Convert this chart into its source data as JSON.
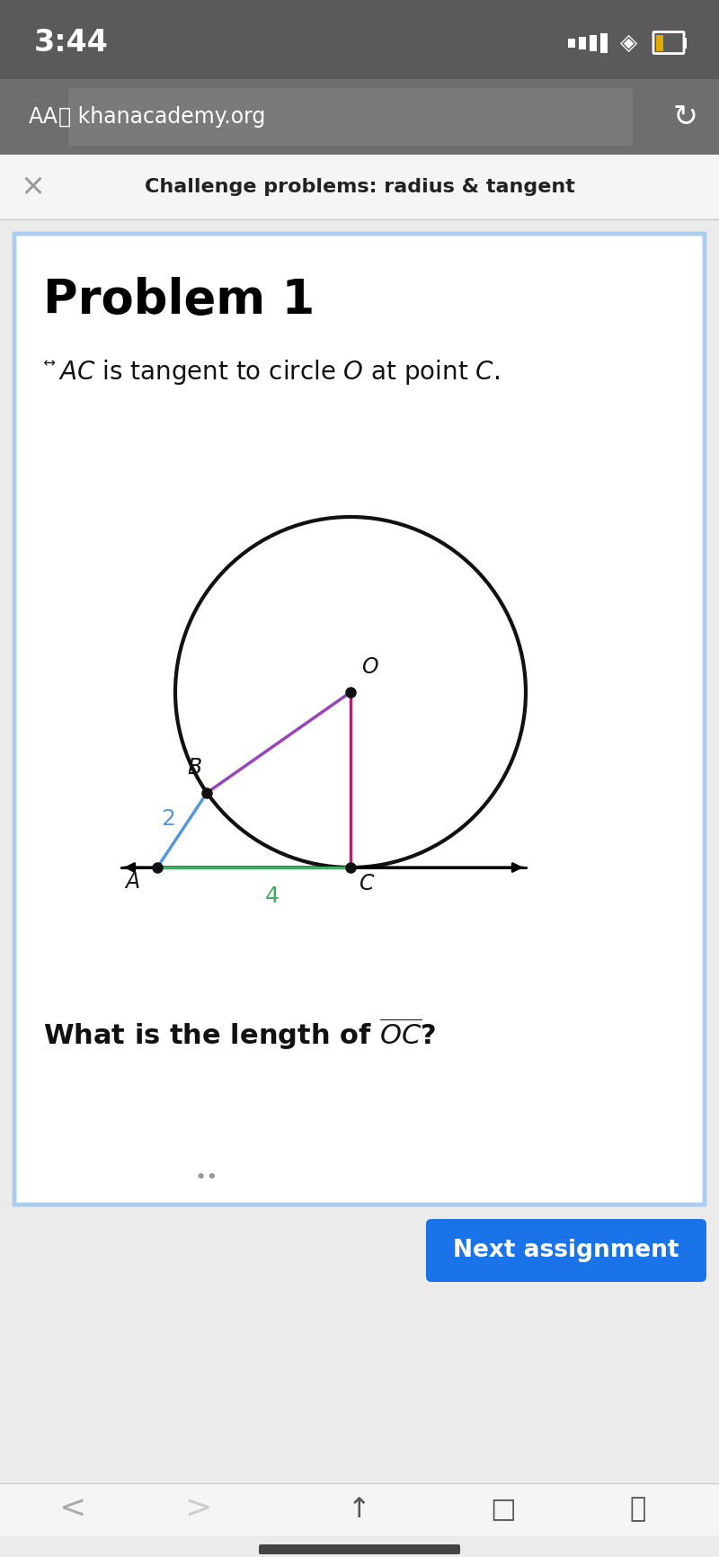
{
  "status_bar_text": "3:44",
  "browser_url": "khanacademy.org",
  "header_text": "Challenge problems: radius & tangent",
  "problem_title": "Problem 1",
  "label_AB": "2",
  "label_AC": "4",
  "label_A": "A",
  "label_B": "B",
  "label_C": "C",
  "label_O": "O",
  "next_button_text": "Next assignment",
  "colors": {
    "status_bar_bg": "#5a5a5a",
    "browser_bar_bg": "#6e6e6e",
    "browser_url_bar_bg": "#888888",
    "page_bg": "#ebebeb",
    "card_bg": "#ffffff",
    "card_border": "#aaccee",
    "circle_color": "#111111",
    "seg_AB_color": "#5599dd",
    "seg_AC_color": "#44aa66",
    "seg_OB_color": "#9944bb",
    "seg_OC_color": "#cc1177",
    "point_color": "#111111",
    "label_color_AB": "#5599dd",
    "label_color_AC": "#44aa66",
    "next_btn_color": "#1a73e8",
    "next_btn_text": "#ffffff",
    "header_text_color": "#222222",
    "title_color": "#000000",
    "text_color": "#111111",
    "nav_bg": "#f5f5f5",
    "bottom_bar_bg": "#f5f5f5"
  }
}
